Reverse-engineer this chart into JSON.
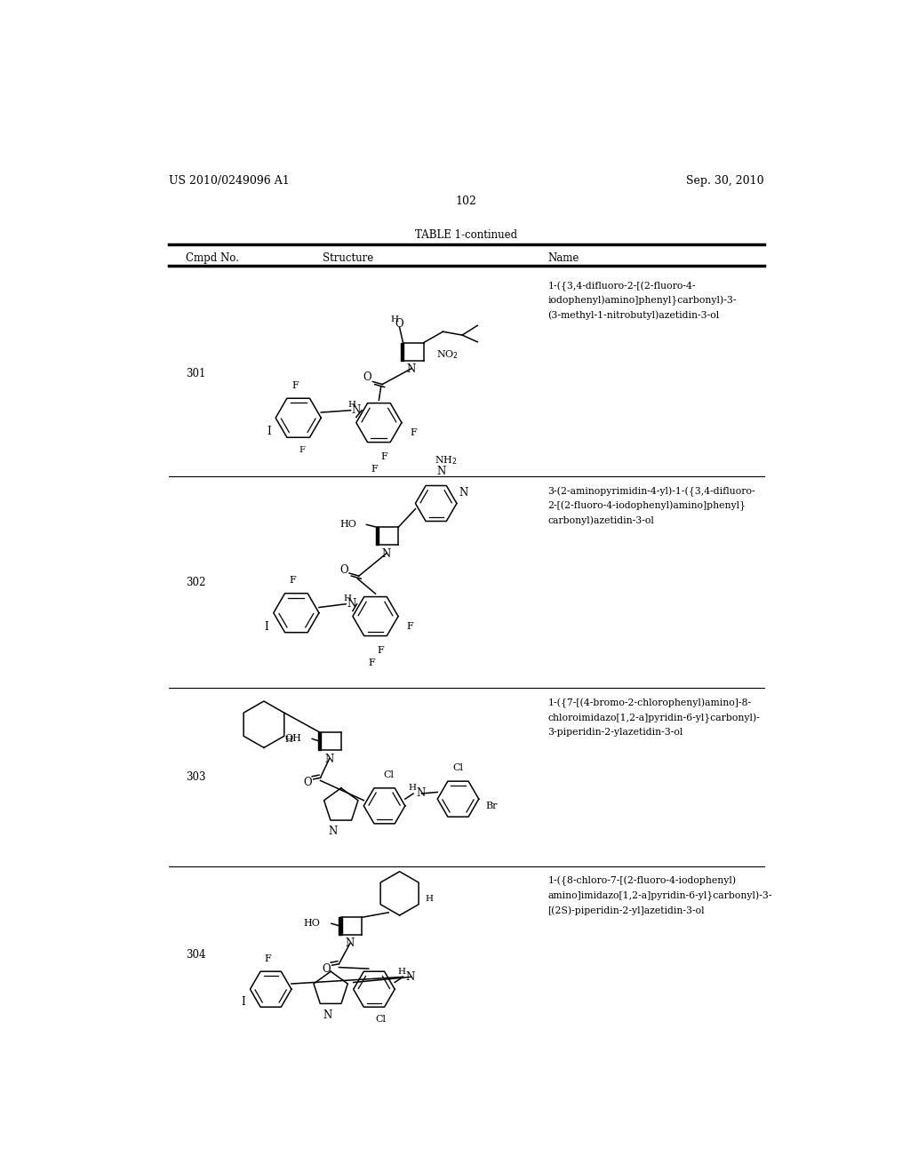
{
  "page_header_left": "US 2010/0249096 A1",
  "page_header_right": "Sep. 30, 2010",
  "page_number": "102",
  "table_title": "TABLE 1-continued",
  "col_headers": [
    "Cmpd No.",
    "Structure",
    "Name"
  ],
  "compounds": [
    {
      "number": "301",
      "name": "1-({3,4-difluoro-2-[(2-fluoro-4-\niodophenyl)amino]phenyl}carbonyl)-3-\n(3-methyl-1-nitrobutyl)azetidin-3-ol"
    },
    {
      "number": "302",
      "name": "3-(2-aminopyrimidin-4-yl)-1-({3,4-difluoro-\n2-[(2-fluoro-4-iodophenyl)amino]phenyl}\ncarbonyl)azetidin-3-ol"
    },
    {
      "number": "303",
      "name": "1-({7-[(4-bromo-2-chlorophenyl)amino]-8-\nchloroimidazo[1,2-a]pyridin-6-yl}carbonyl)-\n3-piperidin-2-ylazetidin-3-ol"
    },
    {
      "number": "304",
      "name": "1-({8-chloro-7-[(2-fluoro-4-iodophenyl)\namino]imidazo[1,2-a]pyridin-6-yl}carbonyl)-3-\n[(2S)-piperidin-2-yl]azetidin-3-ol"
    }
  ],
  "row_tops": [
    190,
    490,
    800,
    1060
  ],
  "row_bots": [
    490,
    800,
    1060,
    1320
  ],
  "bg_color": "#ffffff",
  "text_color": "#000000",
  "line_color": "#000000",
  "fs_small": 7.5,
  "fs_body": 8.5,
  "fs_page": 9.0,
  "fs_name": 7.8
}
